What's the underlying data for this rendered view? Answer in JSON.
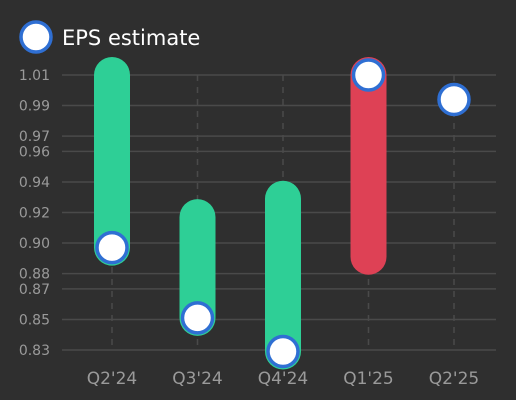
{
  "chart_data": {
    "type": "bar",
    "subtype": "earnings-range",
    "categories": [
      "Q2'24",
      "Q3'24",
      "Q4'24",
      "Q1'25",
      "Q2'25"
    ],
    "series": [
      {
        "name": "EPS estimate",
        "values": [
          0.897,
          0.851,
          0.829,
          1.01,
          0.994
        ]
      }
    ],
    "actual_eps": [
      1.01,
      0.917,
      0.929,
      0.891,
      null
    ],
    "yticks": [
      "0.83",
      "0.85",
      "0.87",
      "0.88",
      "0.90",
      "0.92",
      "0.94",
      "0.96",
      "0.97",
      "0.99",
      "1.01"
    ],
    "ylim": [
      0.825,
      1.02
    ],
    "grid": true,
    "legend_position": "top-left",
    "colors": {
      "background": "#2f2f2f",
      "beat": "#2ecf96",
      "miss": "#de4155",
      "marker_fill": "#ffffff",
      "marker_stroke": "#2f6fd3",
      "grid": "#4a4a4a",
      "tick_text": "#9a9a9a",
      "legend_text": "#ffffff"
    }
  }
}
